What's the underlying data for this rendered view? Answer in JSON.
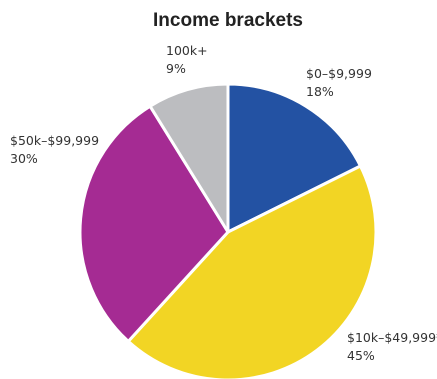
{
  "chart_data": {
    "type": "pie",
    "title": "Income brackets",
    "slices": [
      {
        "label": "$0–$9,999",
        "value": 18,
        "value_label": "18%",
        "color": "#2352a3"
      },
      {
        "label": "$10k–$49,999*",
        "value": 45,
        "value_label": "45%",
        "color": "#f2d524"
      },
      {
        "label": "$50k–$99,999",
        "value": 30,
        "value_label": "30%",
        "color": "#a52b93"
      },
      {
        "label": "100k+",
        "value": 9,
        "value_label": "9%",
        "color": "#bcbdc0"
      }
    ],
    "start": "top",
    "direction": "clockwise"
  }
}
